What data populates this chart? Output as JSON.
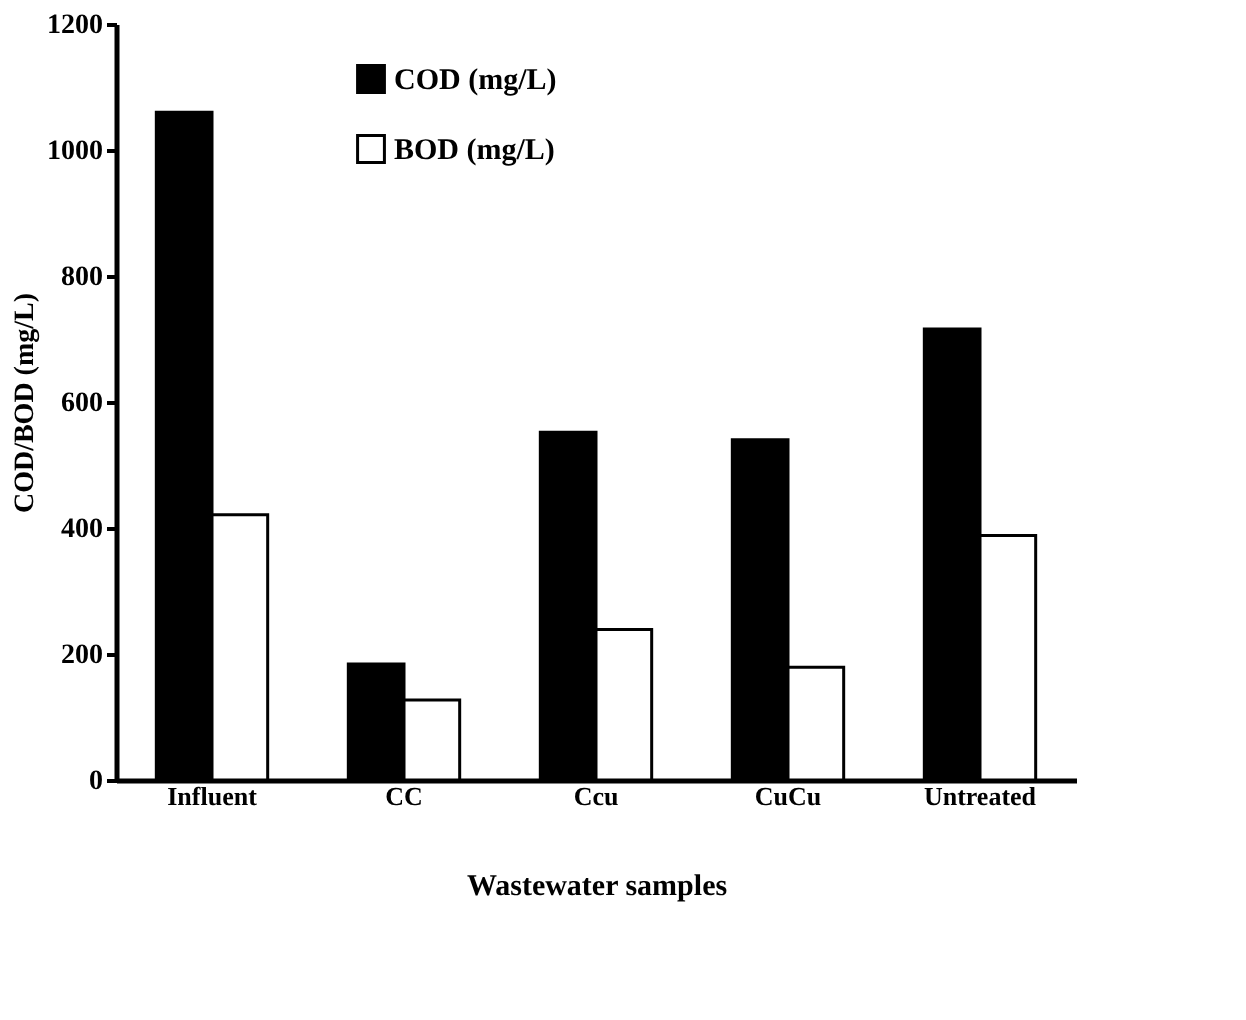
{
  "chart_data": {
    "type": "bar",
    "xlabel": "Wastewater samples",
    "ylabel": "COD/BOD (mg/L)",
    "categories": [
      "Influent",
      "CC",
      "Ccu",
      "CuCu",
      "Untreated"
    ],
    "series": [
      {
        "name": "COD (mg/L)",
        "color": "#000000",
        "values": [
          1060,
          184,
          552,
          540,
          716
        ]
      },
      {
        "name": "BOD (mg/L)",
        "color": "#ffffff",
        "values": [
          421,
          127,
          239,
          179,
          388
        ]
      }
    ],
    "ylim": [
      0,
      1200
    ],
    "yticks": [
      0,
      200,
      400,
      600,
      800,
      1000,
      1200
    ],
    "grid": false,
    "legend": "top"
  }
}
